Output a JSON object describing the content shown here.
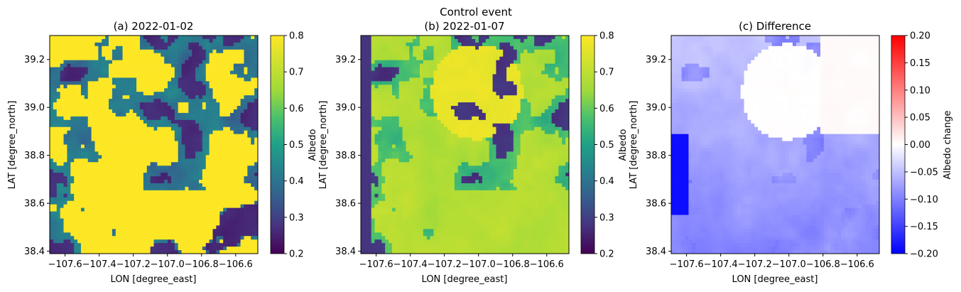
{
  "suptitle": "Control event",
  "chart_data": [
    {
      "type": "heatmap",
      "title": "(a) 2022-01-02",
      "xlabel": "LON [degree_east]",
      "ylabel": "LAT [degree_north]",
      "xlim": [
        -107.69,
        -106.47
      ],
      "ylim": [
        38.39,
        39.3
      ],
      "xticks": [
        -107.6,
        -107.4,
        -107.2,
        -107.0,
        -106.8,
        -106.6
      ],
      "xtick_labels": [
        "−107.6",
        "−107.4",
        "−107.2",
        "−107.0",
        "−106.8",
        "−106.6"
      ],
      "yticks": [
        38.4,
        38.6,
        38.8,
        39.0,
        39.2
      ],
      "ytick_labels": [
        "38.4",
        "38.6",
        "38.8",
        "39.0",
        "39.2"
      ],
      "colormap": "viridis",
      "colorbar": {
        "label": "Albedo",
        "range": [
          0.2,
          0.8
        ],
        "ticks": [
          0.2,
          0.3,
          0.4,
          0.5,
          0.6,
          0.7,
          0.8
        ],
        "tick_labels": [
          "0.2",
          "0.3",
          "0.4",
          "0.5",
          "0.6",
          "0.7",
          "0.8"
        ]
      },
      "value_summary": {
        "dominant_high": 0.8,
        "dominant_low": 0.25,
        "patches": 0.45
      }
    },
    {
      "type": "heatmap",
      "title": "(b) 2022-01-07",
      "xlabel": "LON [degree_east]",
      "ylabel": "LAT [degree_north]",
      "xlim": [
        -107.69,
        -106.47
      ],
      "ylim": [
        38.39,
        39.3
      ],
      "xticks": [
        -107.6,
        -107.4,
        -107.2,
        -107.0,
        -106.8,
        -106.6
      ],
      "xtick_labels": [
        "−107.6",
        "−107.4",
        "−107.2",
        "−107.0",
        "−106.8",
        "−106.6"
      ],
      "yticks": [
        38.4,
        38.6,
        38.8,
        39.0,
        39.2
      ],
      "ytick_labels": [
        "38.4",
        "38.6",
        "38.8",
        "39.0",
        "39.2"
      ],
      "colormap": "viridis",
      "colorbar": {
        "label": "Albedo",
        "range": [
          0.2,
          0.8
        ],
        "ticks": [
          0.2,
          0.3,
          0.4,
          0.5,
          0.6,
          0.7,
          0.8
        ],
        "tick_labels": [
          "0.2",
          "0.3",
          "0.4",
          "0.5",
          "0.6",
          "0.7",
          "0.8"
        ]
      },
      "value_summary": {
        "dominant_high": 0.68,
        "dominant_low": 0.27,
        "peak_region": 0.78
      }
    },
    {
      "type": "heatmap",
      "title": "(c) Difference",
      "xlabel": "LON [degree_east]",
      "ylabel": "LAT [degree_north]",
      "xlim": [
        -107.69,
        -106.47
      ],
      "ylim": [
        38.39,
        39.3
      ],
      "xticks": [
        -107.6,
        -107.4,
        -107.2,
        -107.0,
        -106.8,
        -106.6
      ],
      "xtick_labels": [
        "−107.6",
        "−107.4",
        "−107.2",
        "−107.0",
        "−106.8",
        "−106.6"
      ],
      "yticks": [
        38.4,
        38.6,
        38.8,
        39.0,
        39.2
      ],
      "ytick_labels": [
        "38.4",
        "38.6",
        "38.8",
        "39.0",
        "39.2"
      ],
      "colormap": "bwr",
      "colorbar": {
        "label": "Albedo change",
        "range": [
          -0.2,
          0.2
        ],
        "ticks": [
          -0.2,
          -0.15,
          -0.1,
          -0.05,
          0.0,
          0.05,
          0.1,
          0.15,
          0.2
        ],
        "tick_labels": [
          "−0.20",
          "−0.15",
          "−0.10",
          "−0.05",
          "0.00",
          "0.05",
          "0.10",
          "0.15",
          "0.20"
        ]
      },
      "value_summary": {
        "typical": -0.05,
        "min_region": -0.2,
        "max_region": 0.02
      }
    }
  ]
}
